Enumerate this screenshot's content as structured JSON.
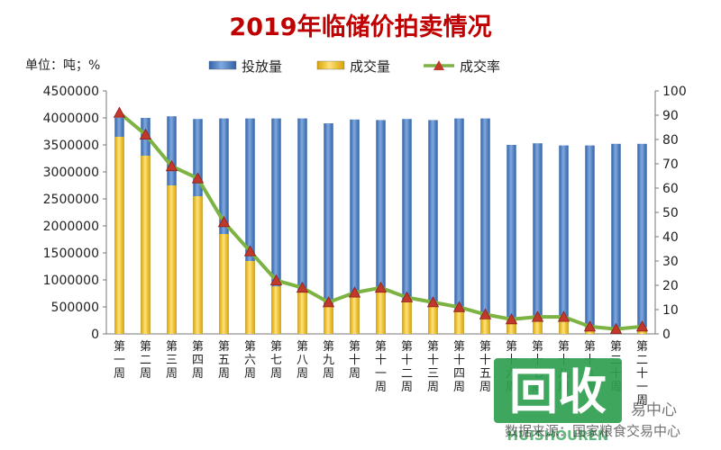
{
  "colors": {
    "title": "#c00000",
    "bar_issue": "#4a7fc1",
    "bar_deal": "#f2c200",
    "line_rate": "#7cb342",
    "marker_rate": "#c0392b",
    "watermark": "#2e9e4f"
  },
  "chart_data": {
    "type": "bar",
    "title": "2019年临储价拍卖情况",
    "unit_label": "单位：吨；%",
    "categories": [
      "第一周",
      "第二周",
      "第三周",
      "第四周",
      "第五周",
      "第六周",
      "第七周",
      "第八周",
      "第九周",
      "第十周",
      "第十一周",
      "第十二周",
      "第十三周",
      "第十四周",
      "第十五周",
      "第十六周",
      "第十七周",
      "第十八周",
      "第十九周",
      "第二十周",
      "第二十一周"
    ],
    "series": [
      {
        "name": "投放量",
        "axis": "left",
        "kind": "bar",
        "values": [
          4000000,
          4000000,
          4030000,
          3980000,
          3990000,
          3990000,
          3990000,
          3990000,
          3900000,
          3970000,
          3960000,
          3980000,
          3960000,
          3990000,
          3990000,
          3500000,
          3530000,
          3490000,
          3490000,
          3520000,
          3520000
        ]
      },
      {
        "name": "成交量",
        "axis": "left",
        "kind": "bar",
        "values": [
          3650000,
          3300000,
          2750000,
          2550000,
          1850000,
          1350000,
          880000,
          770000,
          530000,
          690000,
          770000,
          620000,
          510000,
          450000,
          340000,
          260000,
          280000,
          270000,
          120000,
          80000,
          130000
        ]
      },
      {
        "name": "成交率",
        "axis": "right",
        "kind": "line",
        "values": [
          91,
          82,
          69,
          64,
          46,
          34,
          22,
          19,
          13,
          17,
          19,
          15,
          13,
          11,
          8,
          6,
          7,
          7,
          3,
          2,
          3
        ]
      }
    ],
    "y_left": {
      "min": 0,
      "max": 4500000,
      "step": 500000,
      "ticks": [
        "0",
        "500000",
        "1000000",
        "1500000",
        "2000000",
        "2500000",
        "3000000",
        "3500000",
        "4000000",
        "4500000"
      ]
    },
    "y_right": {
      "min": 0,
      "max": 100,
      "step": 10,
      "ticks": [
        "0",
        "10",
        "20",
        "30",
        "40",
        "50",
        "60",
        "70",
        "80",
        "90",
        "100"
      ]
    },
    "legend_position": "top",
    "grid": false
  },
  "watermark": {
    "logo_text": "回收",
    "brand_text": "HUISHOUREN",
    "side_text": "易中心",
    "source_text": "数据来源：国家粮食交易中心"
  }
}
